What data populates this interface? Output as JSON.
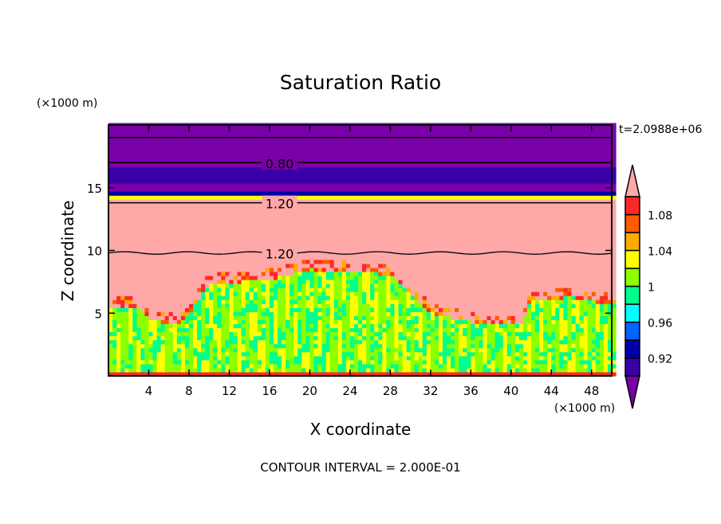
{
  "chart_data": {
    "type": "heatmap",
    "title": "Saturation Ratio",
    "xlabel": "X coordinate",
    "ylabel": "Z coordinate",
    "x_units": "(×1000 m)",
    "y_units": "(×1000 m)",
    "xlim": [
      0,
      50
    ],
    "ylim": [
      0,
      20
    ],
    "x_ticks": [
      "4",
      "8",
      "12",
      "16",
      "20",
      "24",
      "28",
      "32",
      "36",
      "40",
      "44",
      "48"
    ],
    "x_tick_values": [
      4,
      8,
      12,
      16,
      20,
      24,
      28,
      32,
      36,
      40,
      44,
      48
    ],
    "y_ticks": [
      "5",
      "10",
      "15"
    ],
    "y_tick_values": [
      5,
      10,
      15
    ],
    "time_label": "t=2.0988e+06",
    "footer": "CONTOUR INTERVAL = 2.000E-01",
    "contour_labels": [
      {
        "text": "0.80",
        "x": 17,
        "z": 17.0
      },
      {
        "text": "1.20",
        "x": 17,
        "z": 13.8
      },
      {
        "text": "1.20",
        "x": 17,
        "z": 9.8
      }
    ],
    "colorbar": {
      "levels": [
        0.9,
        0.92,
        0.94,
        0.96,
        0.98,
        1.0,
        1.02,
        1.04,
        1.06,
        1.08,
        1.1
      ],
      "tick_labels": [
        "1.08",
        "1.04",
        "1",
        "0.96",
        "0.92"
      ],
      "tick_values": [
        1.08,
        1.04,
        1.0,
        0.96,
        0.92
      ],
      "colors": [
        "#7a00a8",
        "#3a00a8",
        "#0000a8",
        "#0064ff",
        "#00ffff",
        "#00ff8c",
        "#8cff00",
        "#ffff00",
        "#ffaa00",
        "#ff5a00",
        "#ff2828",
        "#ffa8a8"
      ]
    },
    "cloud_top_z": {
      "x": [
        0,
        3,
        4,
        7,
        8,
        10,
        16,
        20,
        28,
        30,
        32,
        36,
        38,
        41,
        42,
        46,
        50
      ],
      "z": [
        6,
        6,
        5,
        4.6,
        5.5,
        7.8,
        8.2,
        9,
        8.6,
        7,
        5.5,
        4.8,
        4.5,
        4.6,
        6.5,
        6.8,
        6.2
      ]
    }
  }
}
